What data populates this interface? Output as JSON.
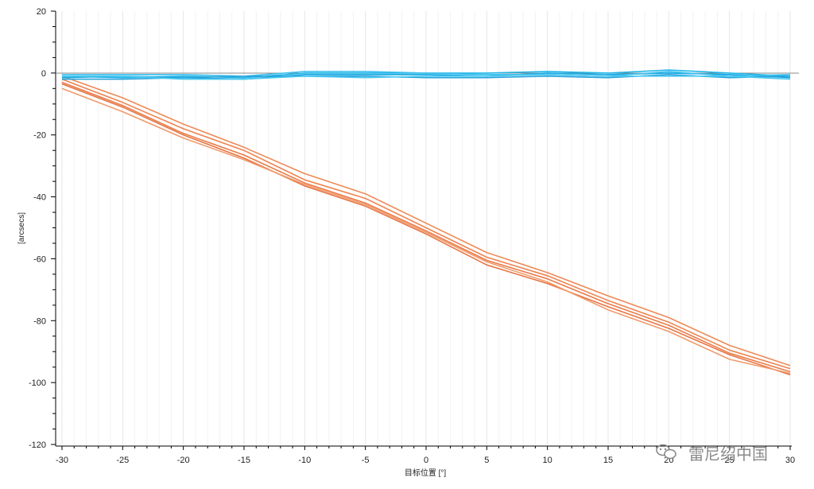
{
  "chart_data": {
    "type": "line",
    "title": "",
    "xlabel": "目标位置 [°]",
    "ylabel": "[arcsecs]",
    "xlim": [
      -30,
      30
    ],
    "ylim": [
      -120,
      20
    ],
    "x_ticks": [
      -30,
      -25,
      -20,
      -15,
      -10,
      -5,
      0,
      5,
      10,
      15,
      20,
      25,
      30
    ],
    "y_ticks": [
      20,
      0,
      -20,
      -40,
      -60,
      -80,
      -100,
      -120
    ],
    "grid": "vertical",
    "x": [
      -30,
      -25,
      -20,
      -15,
      -10,
      -5,
      0,
      5,
      10,
      15,
      20,
      25,
      30
    ],
    "series": [
      {
        "color": "#ed8a57",
        "values": [
          -1,
          -8,
          -16.5,
          -24,
          -32.5,
          -39,
          -48.5,
          -58,
          -64.5,
          -72,
          -79,
          -88,
          -94.5
        ]
      },
      {
        "color": "#ee8450",
        "values": [
          -2,
          -9.5,
          -18,
          -25,
          -34.5,
          -40.5,
          -50,
          -59.5,
          -65.5,
          -73.5,
          -80.5,
          -89.5,
          -95.5
        ]
      },
      {
        "color": "#e97c4a",
        "values": [
          -3,
          -10.5,
          -19.5,
          -26.5,
          -35.5,
          -42,
          -51,
          -60.5,
          -66.5,
          -74.5,
          -81.5,
          -90.5,
          -96.5
        ]
      },
      {
        "color": "#e67543",
        "values": [
          -3.5,
          -11,
          -20,
          -27.5,
          -36.5,
          -43,
          -52,
          -62,
          -68,
          -75.5,
          -82.5,
          -91,
          -97.5
        ]
      },
      {
        "color": "#f09a6c",
        "values": [
          -5,
          -12.5,
          -21,
          -28,
          -36,
          -42.5,
          -51.5,
          -61,
          -67.5,
          -76.5,
          -83.5,
          -92.5,
          -97
        ]
      },
      {
        "color": "#1fb6e8",
        "values": [
          -1,
          -1.5,
          -1,
          -1.5,
          0,
          0,
          0,
          0,
          0.5,
          0,
          1,
          0,
          -1
        ]
      },
      {
        "color": "#19a8e0",
        "values": [
          -1.5,
          -1,
          -1.5,
          -2,
          -0.5,
          -0.5,
          -0.5,
          -1,
          0,
          -0.5,
          0,
          -0.5,
          -1.5
        ]
      },
      {
        "color": "#3cc0ef",
        "values": [
          -0.5,
          -0.5,
          -0.5,
          -1,
          0.5,
          0.5,
          0,
          -0.5,
          -0.5,
          -1,
          0.5,
          -1,
          -0.5
        ]
      },
      {
        "color": "#2aa3da",
        "values": [
          -2,
          -2,
          -1.5,
          -1,
          -1,
          -1,
          -1.5,
          -1.5,
          -1,
          -1.5,
          -0.5,
          -1.5,
          -1
        ]
      },
      {
        "color": "#4dcaf2",
        "values": [
          -1,
          -1,
          -2,
          -2,
          -1,
          -1.5,
          -1,
          -1,
          -0.5,
          -1,
          -1,
          -1,
          -2
        ]
      }
    ]
  },
  "watermark": {
    "icon": "wechat-icon",
    "text": "雷尼绍中国"
  }
}
